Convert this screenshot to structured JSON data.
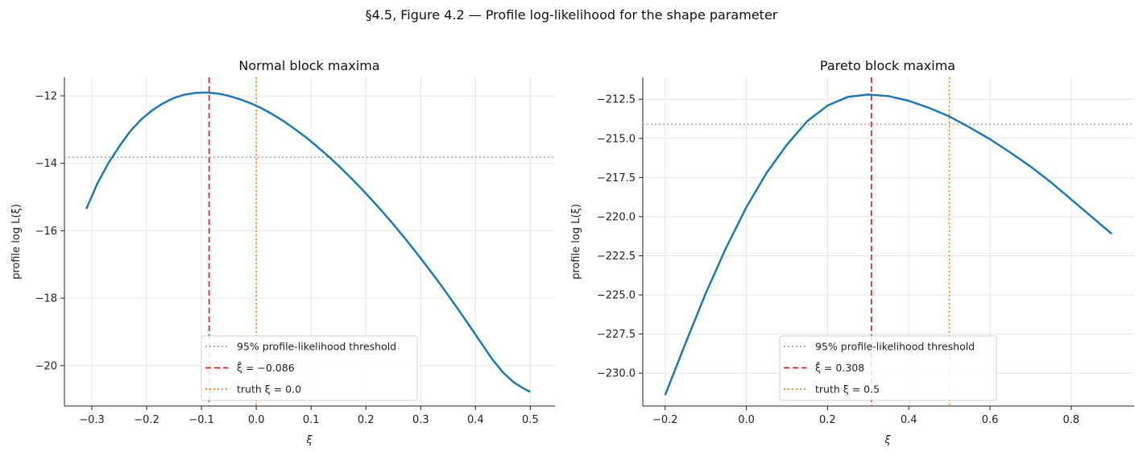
{
  "figure": {
    "suptitle": "§4.5, Figure 4.2 — Profile log-likelihood for the shape parameter"
  },
  "chart_data": [
    {
      "type": "line",
      "title": "Normal block maxima",
      "xlabel": "ξ",
      "ylabel": "profile log L(ξ)",
      "xlim": [
        -0.35,
        0.545
      ],
      "ylim": [
        -21.2,
        -11.45
      ],
      "xticks": [
        -0.3,
        -0.2,
        -0.1,
        0.0,
        0.1,
        0.2,
        0.3,
        0.4,
        0.5
      ],
      "xtick_labels": [
        "−0.3",
        "−0.2",
        "−0.1",
        "0.0",
        "0.1",
        "0.2",
        "0.3",
        "0.4",
        "0.5"
      ],
      "yticks": [
        -20,
        -18,
        -16,
        -14,
        -12
      ],
      "ytick_labels": [
        "−20",
        "−18",
        "−16",
        "−14",
        "−12"
      ],
      "grid": true,
      "legend_position": "lower-center",
      "series": [
        {
          "name": "profile log-likelihood",
          "color": "#1f77b4",
          "x": [
            -0.31,
            -0.29,
            -0.27,
            -0.25,
            -0.23,
            -0.21,
            -0.19,
            -0.17,
            -0.15,
            -0.13,
            -0.11,
            -0.09,
            -0.07,
            -0.05,
            -0.03,
            -0.01,
            0.01,
            0.03,
            0.05,
            0.07,
            0.09,
            0.11,
            0.13,
            0.15,
            0.17,
            0.19,
            0.21,
            0.23,
            0.25,
            0.27,
            0.29,
            0.31,
            0.33,
            0.35,
            0.37,
            0.39,
            0.41,
            0.43,
            0.45,
            0.47,
            0.49,
            0.5
          ],
          "y": [
            -15.35,
            -14.6,
            -14.0,
            -13.5,
            -13.05,
            -12.7,
            -12.43,
            -12.22,
            -12.06,
            -11.96,
            -11.91,
            -11.9,
            -11.93,
            -12.0,
            -12.1,
            -12.22,
            -12.37,
            -12.55,
            -12.75,
            -12.98,
            -13.22,
            -13.49,
            -13.77,
            -14.07,
            -14.39,
            -14.72,
            -15.07,
            -15.43,
            -15.81,
            -16.2,
            -16.61,
            -17.03,
            -17.46,
            -17.91,
            -18.37,
            -18.84,
            -19.32,
            -19.8,
            -20.2,
            -20.5,
            -20.7,
            -20.78
          ]
        }
      ],
      "hlines": [
        {
          "name": "95% profile-likelihood threshold",
          "y": -13.82,
          "color": "#aaaaaa",
          "style": "dotted"
        }
      ],
      "vlines": [
        {
          "name": "ξ̂ = −0.086",
          "x": -0.086,
          "color": "#e31a1c",
          "style": "dashed"
        },
        {
          "name": "truth ξ = 0.0",
          "x": 0.0,
          "color": "#ff7f0e",
          "style": "dotted"
        }
      ],
      "legend": [
        {
          "label": "95% profile-likelihood threshold",
          "color": "#aaaaaa",
          "style": "dotted"
        },
        {
          "label": "ξ̂ = −0.086",
          "color": "#e31a1c",
          "style": "dashed"
        },
        {
          "label": "truth ξ = 0.0",
          "color": "#ff7f0e",
          "style": "dotted"
        }
      ]
    },
    {
      "type": "line",
      "title": "Pareto block maxima",
      "xlabel": "ξ",
      "ylabel": "profile log L(ξ)",
      "xlim": [
        -0.255,
        0.955
      ],
      "ylim": [
        -232.1,
        -211.1
      ],
      "xticks": [
        -0.2,
        0.0,
        0.2,
        0.4,
        0.6,
        0.8
      ],
      "xtick_labels": [
        "−0.2",
        "0.0",
        "0.2",
        "0.4",
        "0.6",
        "0.8"
      ],
      "yticks": [
        -230.0,
        -227.5,
        -225.0,
        -222.5,
        -220.0,
        -217.5,
        -215.0,
        -212.5
      ],
      "ytick_labels": [
        "−230.0",
        "−227.5",
        "−225.0",
        "−222.5",
        "−220.0",
        "−217.5",
        "−215.0",
        "−212.5"
      ],
      "grid": true,
      "legend_position": "lower-center",
      "series": [
        {
          "name": "profile log-likelihood",
          "color": "#1f77b4",
          "x": [
            -0.2,
            -0.15,
            -0.1,
            -0.05,
            0.0,
            0.05,
            0.1,
            0.15,
            0.2,
            0.25,
            0.3,
            0.35,
            0.4,
            0.45,
            0.5,
            0.55,
            0.6,
            0.65,
            0.7,
            0.75,
            0.8,
            0.85,
            0.9
          ],
          "y": [
            -231.4,
            -228.1,
            -224.9,
            -222.0,
            -219.4,
            -217.2,
            -215.4,
            -213.9,
            -212.9,
            -212.35,
            -212.2,
            -212.3,
            -212.6,
            -213.05,
            -213.6,
            -214.3,
            -215.05,
            -215.9,
            -216.8,
            -217.8,
            -218.9,
            -220.0,
            -221.1
          ]
        }
      ],
      "hlines": [
        {
          "name": "95% profile-likelihood threshold",
          "y": -214.1,
          "color": "#aaaaaa",
          "style": "dotted"
        }
      ],
      "vlines": [
        {
          "name": "ξ̂ = 0.308",
          "x": 0.308,
          "color": "#e31a1c",
          "style": "dashed"
        },
        {
          "name": "truth ξ = 0.5",
          "x": 0.5,
          "color": "#ff7f0e",
          "style": "dotted"
        }
      ],
      "legend": [
        {
          "label": "95% profile-likelihood threshold",
          "color": "#aaaaaa",
          "style": "dotted"
        },
        {
          "label": "ξ̂ = 0.308",
          "color": "#e31a1c",
          "style": "dashed"
        },
        {
          "label": "truth ξ = 0.5",
          "color": "#ff7f0e",
          "style": "dotted"
        }
      ]
    }
  ]
}
